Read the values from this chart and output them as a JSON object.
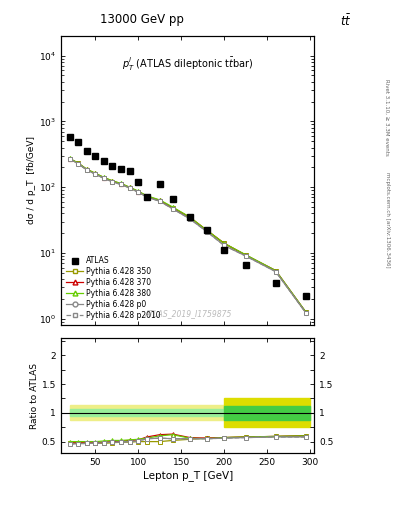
{
  "title_top": "13000 GeV pp",
  "title_right": "tt̅",
  "annotation": "$p_T^l$ (ATLAS dileptonic t$\\bar{t}$bar)",
  "watermark": "ATLAS_2019_I1759875",
  "right_label": "mcplots.cern.ch [arXiv:1306.3436]",
  "right_label2": "Rivet 3.1.10, ≥ 3.3M events",
  "ylabel_main": "dσ / d p_T  [fb/GeV]",
  "ylabel_ratio": "Ratio to ATLAS",
  "xlabel": "Lepton p_T [GeV]",
  "ylim_main_lo": 0.8,
  "ylim_main_hi": 20000,
  "ylim_ratio_lo": 0.3,
  "ylim_ratio_hi": 2.3,
  "atlas_x": [
    20,
    30,
    40,
    50,
    60,
    70,
    80,
    90,
    100,
    110,
    125,
    140,
    160,
    180,
    200,
    225,
    260,
    295
  ],
  "atlas_y": [
    570,
    490,
    350,
    295,
    250,
    210,
    190,
    175,
    120,
    70,
    110,
    65,
    35,
    22,
    11,
    6.5,
    3.5,
    2.2
  ],
  "pythia_x": [
    20,
    30,
    40,
    50,
    60,
    70,
    80,
    90,
    100,
    110,
    125,
    140,
    160,
    180,
    200,
    225,
    260,
    295
  ],
  "py350_y": [
    270,
    230,
    185,
    160,
    138,
    122,
    112,
    98,
    85,
    72,
    62,
    48,
    34,
    22,
    14,
    9.2,
    5.3,
    1.25
  ],
  "py370_y": [
    272,
    232,
    187,
    162,
    140,
    124,
    113,
    99,
    86,
    73,
    63,
    49,
    35,
    22,
    14,
    9.3,
    5.4,
    1.26
  ],
  "py380_y": [
    274,
    234,
    188,
    163,
    141,
    125,
    114,
    100,
    87,
    74,
    64,
    50,
    35,
    22,
    14,
    9.4,
    5.4,
    1.27
  ],
  "pyp0_y": [
    268,
    228,
    183,
    158,
    136,
    120,
    110,
    97,
    84,
    71,
    61,
    47,
    33,
    21,
    13,
    9.0,
    5.2,
    1.23
  ],
  "pyp2010_y": [
    268,
    228,
    183,
    158,
    136,
    120,
    110,
    97,
    84,
    71,
    61,
    47,
    33,
    21,
    13,
    9.0,
    5.2,
    1.23
  ],
  "ratio_py350": [
    0.47,
    0.47,
    0.47,
    0.47,
    0.47,
    0.48,
    0.49,
    0.49,
    0.5,
    0.5,
    0.5,
    0.52,
    0.54,
    0.56,
    0.57,
    0.58,
    0.59,
    0.6
  ],
  "ratio_py370": [
    0.48,
    0.48,
    0.48,
    0.48,
    0.49,
    0.5,
    0.51,
    0.52,
    0.53,
    0.58,
    0.62,
    0.63,
    0.57,
    0.56,
    0.57,
    0.58,
    0.59,
    0.6
  ],
  "ratio_py380": [
    0.5,
    0.5,
    0.5,
    0.5,
    0.51,
    0.52,
    0.52,
    0.53,
    0.54,
    0.56,
    0.6,
    0.62,
    0.56,
    0.55,
    0.57,
    0.58,
    0.59,
    0.6
  ],
  "ratio_pyp0": [
    0.46,
    0.46,
    0.47,
    0.47,
    0.48,
    0.49,
    0.49,
    0.5,
    0.51,
    0.55,
    0.56,
    0.55,
    0.55,
    0.55,
    0.56,
    0.57,
    0.58,
    0.58
  ],
  "ratio_pyp2010": [
    0.46,
    0.46,
    0.47,
    0.47,
    0.48,
    0.49,
    0.49,
    0.5,
    0.51,
    0.55,
    0.56,
    0.55,
    0.55,
    0.55,
    0.56,
    0.57,
    0.58,
    0.58
  ],
  "band1_xlo": 20,
  "band1_xhi": 200,
  "band2_xlo": 200,
  "band2_xhi": 300,
  "band1_green_lo": 0.94,
  "band1_green_hi": 1.06,
  "band1_yellow_lo": 0.87,
  "band1_yellow_hi": 1.13,
  "band2_green_lo": 0.88,
  "band2_green_hi": 1.12,
  "band2_yellow_lo": 0.75,
  "band2_yellow_hi": 1.25,
  "color_atlas": "#000000",
  "color_py350": "#999900",
  "color_py370": "#cc0000",
  "color_py380": "#66cc00",
  "color_pyp0": "#888888",
  "color_pyp2010": "#888888",
  "color_band_green1": "#99ee99",
  "color_band_yellow1": "#eeee88",
  "color_band_green2": "#44cc44",
  "color_band_yellow2": "#dddd00",
  "bg_color": "#ffffff"
}
